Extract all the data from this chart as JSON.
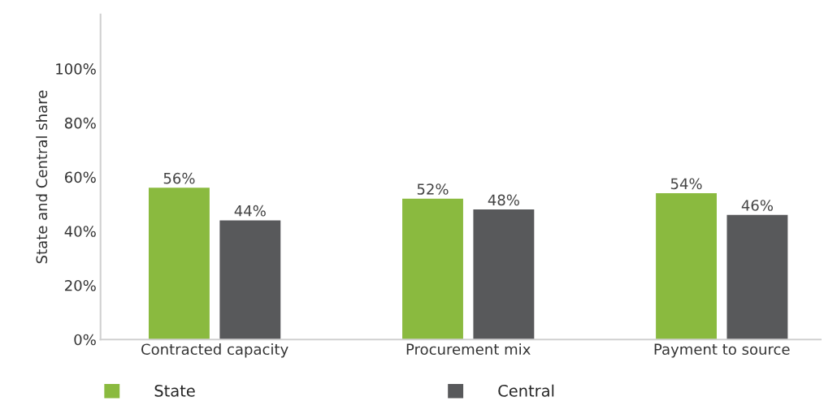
{
  "chart_data": {
    "type": "bar",
    "ylabel": "State and Central share",
    "categories": [
      "Contracted capacity",
      "Procurement mix",
      "Payment to source"
    ],
    "series": [
      {
        "name": "State",
        "color": "#8aba3f",
        "values": [
          56,
          52,
          54
        ],
        "value_labels": [
          "56%",
          "52%",
          "54%"
        ]
      },
      {
        "name": "Central",
        "color": "#58595b",
        "values": [
          44,
          48,
          46
        ],
        "value_labels": [
          "44%",
          "48%",
          "46%"
        ]
      }
    ],
    "ylim": [
      0,
      120
    ],
    "yticks": [
      {
        "value": 0,
        "label": "0%"
      },
      {
        "value": 20,
        "label": "20%"
      },
      {
        "value": 40,
        "label": "40%"
      },
      {
        "value": 60,
        "label": "60%"
      },
      {
        "value": 80,
        "label": "80%"
      },
      {
        "value": 100,
        "label": "100%"
      }
    ],
    "grid": false,
    "legend": "bottom"
  }
}
